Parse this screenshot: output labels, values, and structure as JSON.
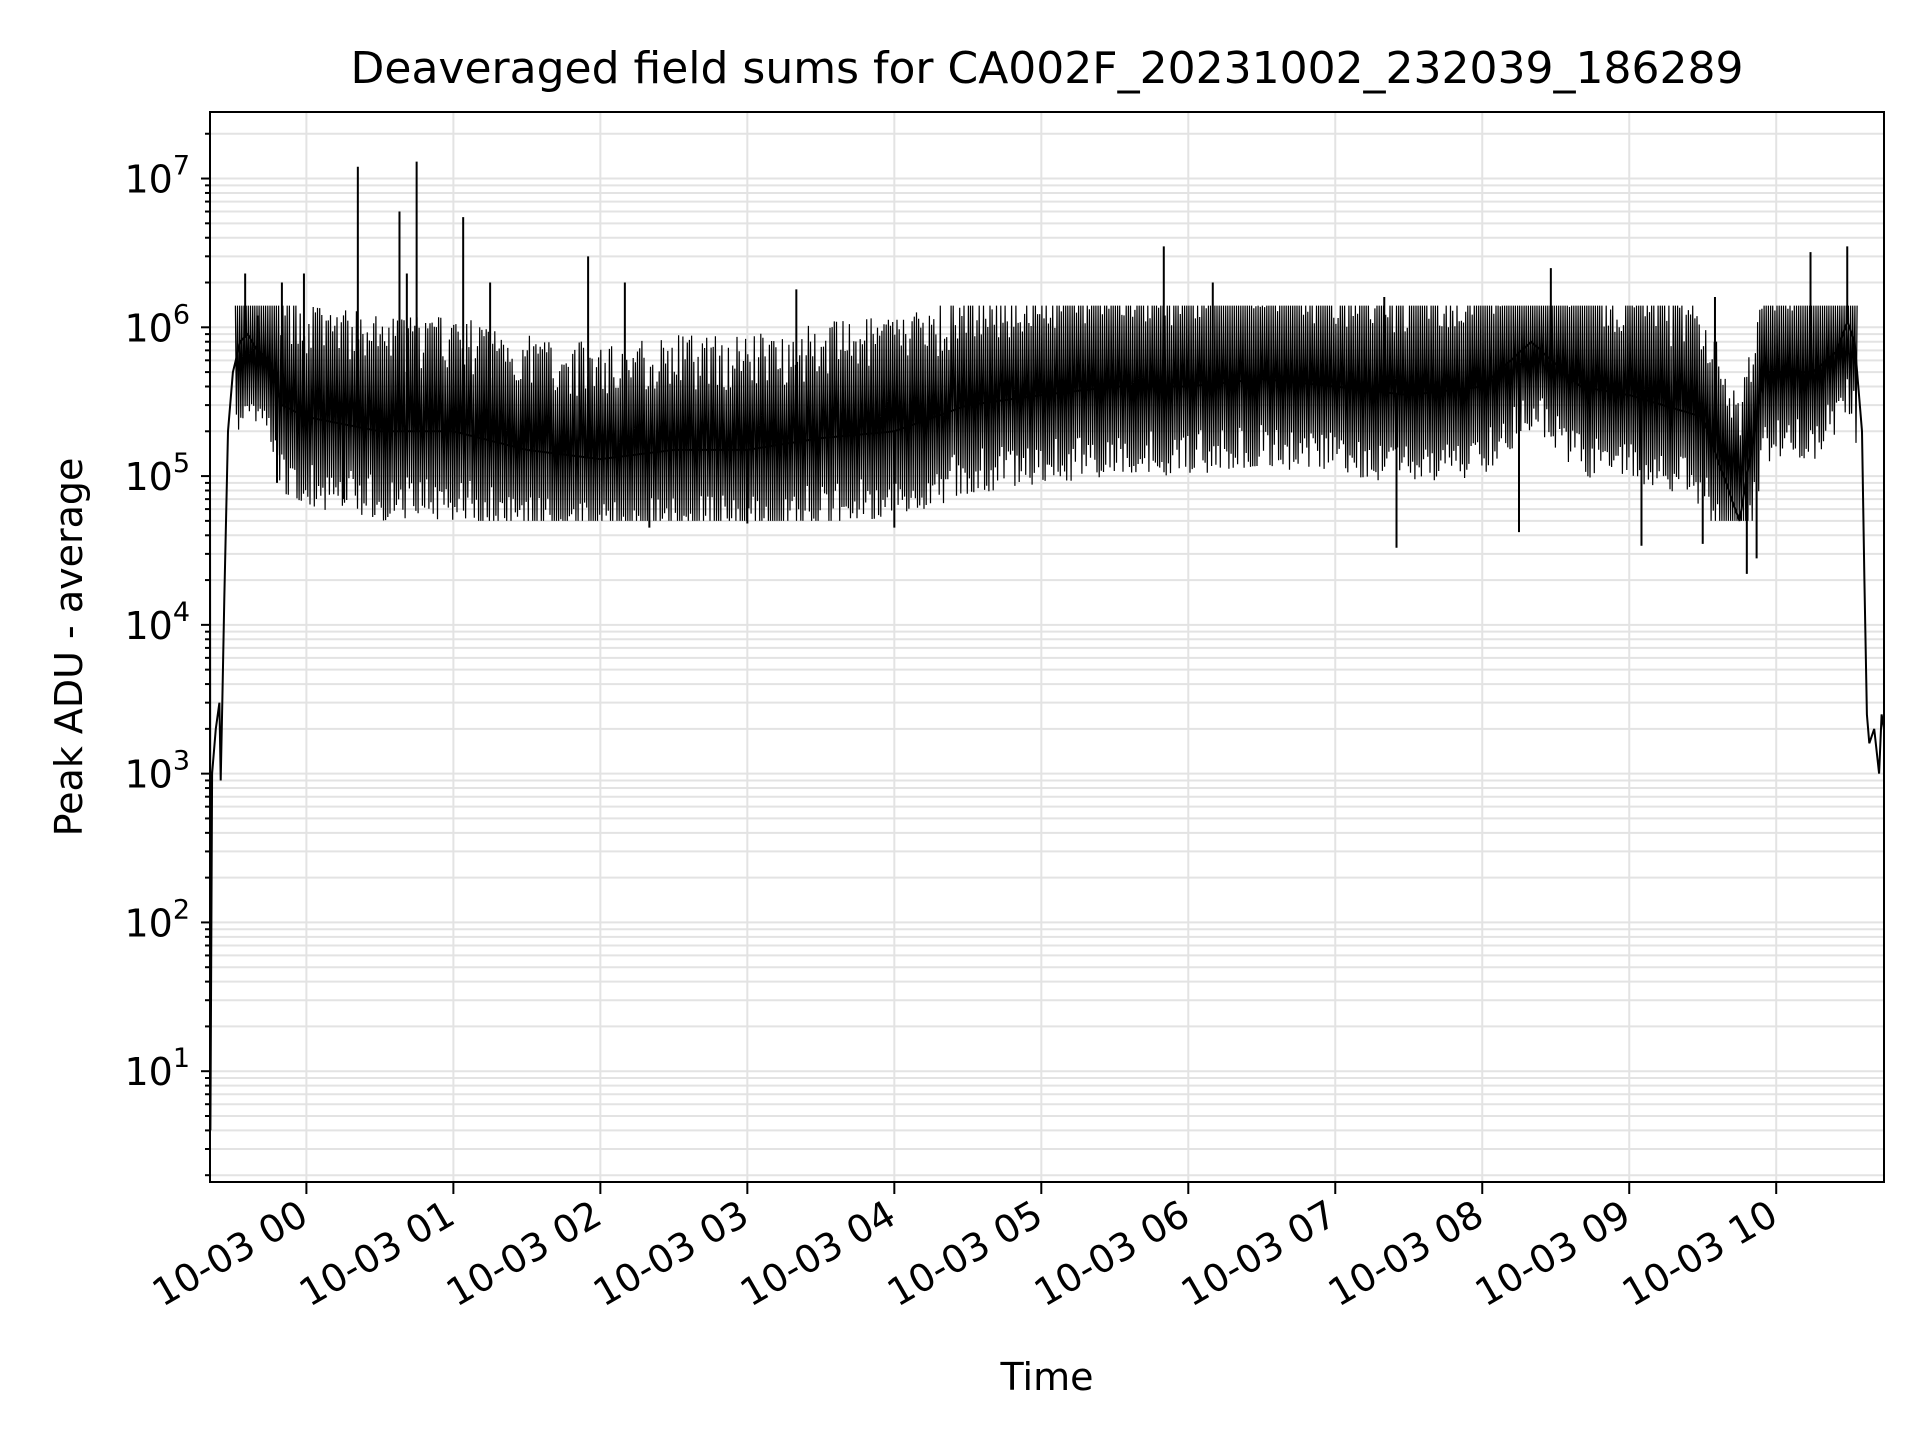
{
  "chart_data": {
    "type": "line",
    "title": "Deaveraged field sums for CA002F_20231002_232039_186289",
    "xlabel": "Time",
    "ylabel": "Peak ADU - average",
    "xlim": [
      "2023-10-02T23:20:39",
      "2023-10-03T10:44:00"
    ],
    "ylim": [
      1.8,
      28000000
    ],
    "yscale": "log",
    "grid": "on (major and minor, light gray)",
    "line_color": "#000000",
    "x_ticks": [
      {
        "t": "2023-10-03T00:00",
        "label": "10-03 00"
      },
      {
        "t": "2023-10-03T01:00",
        "label": "10-03 01"
      },
      {
        "t": "2023-10-03T02:00",
        "label": "10-03 02"
      },
      {
        "t": "2023-10-03T03:00",
        "label": "10-03 03"
      },
      {
        "t": "2023-10-03T04:00",
        "label": "10-03 04"
      },
      {
        "t": "2023-10-03T05:00",
        "label": "10-03 05"
      },
      {
        "t": "2023-10-03T06:00",
        "label": "10-03 06"
      },
      {
        "t": "2023-10-03T07:00",
        "label": "10-03 07"
      },
      {
        "t": "2023-10-03T08:00",
        "label": "10-03 08"
      },
      {
        "t": "2023-10-03T09:00",
        "label": "10-03 09"
      },
      {
        "t": "2023-10-03T10:00",
        "label": "10-03 10"
      }
    ],
    "y_ticks": [
      {
        "value": 10,
        "base": "10",
        "exp": "1"
      },
      {
        "value": 100,
        "base": "10",
        "exp": "2"
      },
      {
        "value": 1000,
        "base": "10",
        "exp": "3"
      },
      {
        "value": 10000,
        "base": "10",
        "exp": "4"
      },
      {
        "value": 100000,
        "base": "10",
        "exp": "5"
      },
      {
        "value": 1000000,
        "base": "10",
        "exp": "6"
      },
      {
        "value": 10000000,
        "base": "10",
        "exp": "7"
      }
    ],
    "series": [
      {
        "points": [
          [
            "2023-10-02T23:20:39",
            110000
          ],
          [
            "2023-10-02T23:20:50",
            4
          ],
          [
            "2023-10-02T23:21:30",
            1000
          ],
          [
            "2023-10-02T23:23:00",
            2000
          ],
          [
            "2023-10-02T23:24:30",
            3000
          ],
          [
            "2023-10-02T23:25:00",
            900
          ],
          [
            "2023-10-02T23:25:40",
            3000
          ],
          [
            "2023-10-02T23:26:30",
            15000
          ],
          [
            "2023-10-02T23:28:00",
            200000
          ],
          [
            "2023-10-02T23:30:00",
            500000
          ],
          [
            "2023-10-02T23:33:00",
            800000
          ],
          [
            "2023-10-02T23:36:00",
            900000
          ],
          [
            "2023-10-02T23:40:00",
            700000
          ],
          [
            "2023-10-02T23:45:00",
            600000
          ],
          [
            "2023-10-02T23:50:00",
            300000
          ],
          [
            "2023-10-03T00:00:00",
            250000
          ],
          [
            "2023-10-03T00:30:00",
            200000
          ],
          [
            "2023-10-03T01:00:00",
            200000
          ],
          [
            "2023-10-03T01:30:00",
            150000
          ],
          [
            "2023-10-03T02:00:00",
            130000
          ],
          [
            "2023-10-03T02:30:00",
            150000
          ],
          [
            "2023-10-03T03:00:00",
            150000
          ],
          [
            "2023-10-03T03:30:00",
            180000
          ],
          [
            "2023-10-03T04:00:00",
            200000
          ],
          [
            "2023-10-03T04:30:00",
            300000
          ],
          [
            "2023-10-03T05:00:00",
            350000
          ],
          [
            "2023-10-03T05:30:00",
            400000
          ],
          [
            "2023-10-03T06:00:00",
            400000
          ],
          [
            "2023-10-03T06:30:00",
            450000
          ],
          [
            "2023-10-03T07:00:00",
            400000
          ],
          [
            "2023-10-03T07:30:00",
            350000
          ],
          [
            "2023-10-03T08:00:00",
            400000
          ],
          [
            "2023-10-03T08:20:00",
            800000
          ],
          [
            "2023-10-03T08:40:00",
            400000
          ],
          [
            "2023-10-03T09:00:00",
            350000
          ],
          [
            "2023-10-03T09:30:00",
            250000
          ],
          [
            "2023-10-03T09:45:00",
            50000
          ],
          [
            "2023-10-03T09:55:00",
            500000
          ],
          [
            "2023-10-03T10:15:00",
            500000
          ],
          [
            "2023-10-03T10:25:00",
            700000
          ],
          [
            "2023-10-03T10:29:00",
            1100000
          ],
          [
            "2023-10-03T10:32:00",
            800000
          ],
          [
            "2023-10-03T10:35:00",
            200000
          ],
          [
            "2023-10-03T10:36:00",
            20000
          ],
          [
            "2023-10-03T10:37:00",
            2500
          ],
          [
            "2023-10-03T10:38:00",
            1600
          ],
          [
            "2023-10-03T10:40:00",
            2000
          ],
          [
            "2023-10-03T10:42:00",
            1000
          ],
          [
            "2023-10-03T10:43:00",
            2500
          ],
          [
            "2023-10-03T10:44:00",
            2000
          ]
        ],
        "spikes": [
          [
            "2023-10-02T23:35:00",
            2300000
          ],
          [
            "2023-10-02T23:40:00",
            1200000
          ],
          [
            "2023-10-02T23:50:00",
            2000000
          ],
          [
            "2023-10-02T23:59:00",
            2300000
          ],
          [
            "2023-10-03T00:21:00",
            12000000
          ],
          [
            "2023-10-03T00:38:00",
            6000000
          ],
          [
            "2023-10-03T00:41:00",
            2300000
          ],
          [
            "2023-10-03T00:45:00",
            13000000
          ],
          [
            "2023-10-03T01:04:00",
            5500000
          ],
          [
            "2023-10-03T01:15:00",
            2000000
          ],
          [
            "2023-10-03T01:55:00",
            3000000
          ],
          [
            "2023-10-03T02:10:00",
            2000000
          ],
          [
            "2023-10-03T03:20:00",
            1800000
          ],
          [
            "2023-10-03T05:50:00",
            3500000
          ],
          [
            "2023-10-03T06:10:00",
            2000000
          ],
          [
            "2023-10-03T07:20:00",
            1600000
          ],
          [
            "2023-10-03T08:28:00",
            2500000
          ],
          [
            "2023-10-03T09:35:00",
            1600000
          ],
          [
            "2023-10-03T10:14:00",
            3200000
          ],
          [
            "2023-10-03T10:29:00",
            3500000
          ]
        ],
        "dips": [
          [
            "2023-10-02T23:48:00",
            90000
          ],
          [
            "2023-10-03T00:15:00",
            70000
          ],
          [
            "2023-10-03T02:20:00",
            45000
          ],
          [
            "2023-10-03T03:00:00",
            48000
          ],
          [
            "2023-10-03T04:00:00",
            45000
          ],
          [
            "2023-10-03T07:25:00",
            33000
          ],
          [
            "2023-10-03T08:15:00",
            42000
          ],
          [
            "2023-10-03T09:05:00",
            34000
          ],
          [
            "2023-10-03T09:30:00",
            35000
          ],
          [
            "2023-10-03T09:48:00",
            22000
          ],
          [
            "2023-10-03T09:52:00",
            28000
          ]
        ]
      }
    ]
  }
}
